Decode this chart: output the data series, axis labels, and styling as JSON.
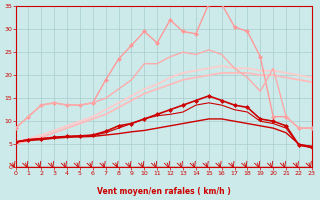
{
  "background_color": "#cceaea",
  "grid_color": "#aacccc",
  "xlabel": "Vent moyen/en rafales ( km/h )",
  "xlabel_color": "#cc0000",
  "tick_color": "#cc0000",
  "xlim": [
    0,
    23
  ],
  "ylim": [
    0,
    35
  ],
  "xticks": [
    0,
    1,
    2,
    3,
    4,
    5,
    6,
    7,
    8,
    9,
    10,
    11,
    12,
    13,
    14,
    15,
    16,
    17,
    18,
    19,
    20,
    21,
    22,
    23
  ],
  "yticks": [
    0,
    5,
    10,
    15,
    20,
    25,
    30,
    35
  ],
  "lines": [
    {
      "y": [
        5.5,
        6.2,
        7.0,
        8.0,
        9.0,
        10.0,
        11.0,
        12.5,
        14.0,
        15.5,
        17.0,
        18.0,
        19.5,
        20.5,
        21.0,
        21.5,
        22.0,
        21.5,
        21.5,
        21.0,
        21.0,
        20.5,
        20.0,
        19.5
      ],
      "color": "#ffcccc",
      "linewidth": 1.3,
      "marker": null,
      "alpha": 1.0
    },
    {
      "y": [
        5.0,
        5.8,
        6.5,
        7.5,
        8.5,
        9.5,
        10.5,
        11.5,
        13.0,
        14.5,
        16.0,
        17.0,
        18.0,
        19.0,
        19.5,
        20.0,
        20.5,
        20.5,
        20.5,
        20.0,
        20.0,
        19.5,
        19.0,
        18.5
      ],
      "color": "#ffbbbb",
      "linewidth": 1.3,
      "marker": null,
      "alpha": 1.0
    },
    {
      "y": [
        8.5,
        11.0,
        13.5,
        14.0,
        13.5,
        13.5,
        14.0,
        19.0,
        23.5,
        26.5,
        29.5,
        27.0,
        32.0,
        29.5,
        29.0,
        35.5,
        35.5,
        30.5,
        29.5,
        24.0,
        11.0,
        11.0,
        8.5,
        8.5
      ],
      "color": "#ff9999",
      "linewidth": 1.0,
      "marker": "D",
      "markersize": 2.0,
      "alpha": 1.0
    },
    {
      "y": [
        8.5,
        11.0,
        13.5,
        14.0,
        13.5,
        13.5,
        14.0,
        15.0,
        17.0,
        19.0,
        22.5,
        22.5,
        24.0,
        25.0,
        24.5,
        25.5,
        24.5,
        21.5,
        19.5,
        16.5,
        21.5,
        11.0,
        8.5,
        8.5
      ],
      "color": "#ffaaaa",
      "linewidth": 1.0,
      "marker": null,
      "alpha": 1.0
    },
    {
      "y": [
        5.5,
        6.0,
        6.2,
        6.5,
        6.7,
        6.8,
        7.0,
        7.8,
        9.0,
        9.5,
        10.5,
        11.5,
        12.5,
        13.5,
        14.5,
        15.5,
        14.5,
        13.5,
        13.0,
        10.5,
        10.0,
        9.0,
        4.8,
        4.5
      ],
      "color": "#cc0000",
      "linewidth": 1.2,
      "marker": "D",
      "markersize": 2.0,
      "alpha": 1.0
    },
    {
      "y": [
        5.5,
        6.0,
        6.2,
        6.5,
        6.7,
        6.8,
        6.9,
        7.5,
        8.5,
        9.5,
        10.5,
        11.2,
        11.5,
        12.0,
        13.5,
        14.0,
        13.5,
        12.5,
        12.0,
        10.0,
        9.5,
        8.5,
        4.8,
        4.2
      ],
      "color": "#cc0000",
      "linewidth": 0.8,
      "marker": null,
      "alpha": 1.0
    },
    {
      "y": [
        5.5,
        5.8,
        6.0,
        6.3,
        6.5,
        6.6,
        6.7,
        7.0,
        7.3,
        7.7,
        8.0,
        8.5,
        9.0,
        9.5,
        10.0,
        10.5,
        10.5,
        10.0,
        9.5,
        9.0,
        8.5,
        7.5,
        5.0,
        4.5
      ],
      "color": "#cc0000",
      "linewidth": 1.0,
      "marker": null,
      "alpha": 1.0
    }
  ],
  "arrow_color": "#cc0000"
}
